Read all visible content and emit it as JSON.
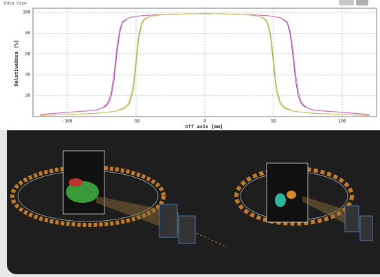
{
  "chart_data": {
    "type": "line",
    "title": "Data View",
    "xlabel": "Off axis [mm]",
    "ylabel": "RelativeDose [%]",
    "xlim": [
      -125,
      125
    ],
    "ylim": [
      0,
      104
    ],
    "xticks": [
      -100,
      -50,
      0,
      50,
      100
    ],
    "yticks": [
      20,
      40,
      60,
      80,
      100
    ],
    "grid": true,
    "series": [
      {
        "color": "#9b3fc4",
        "x": [
          -120,
          -100,
          -80,
          -75,
          -72,
          -70,
          -68,
          -66,
          -64,
          -62,
          -60,
          -55,
          -45,
          -30,
          0,
          30,
          45,
          55,
          60,
          62,
          64,
          66,
          68,
          70,
          72,
          75,
          80,
          100,
          120
        ],
        "values": [
          2,
          4,
          6,
          8,
          10,
          13,
          20,
          35,
          60,
          80,
          90,
          95,
          97,
          98,
          99,
          98,
          97,
          95,
          90,
          80,
          60,
          35,
          20,
          13,
          10,
          8,
          6,
          4,
          2
        ]
      },
      {
        "color": "#d46fb0",
        "x": [
          -120,
          -100,
          -80,
          -75,
          -72,
          -70,
          -68,
          -66,
          -64,
          -62,
          -60,
          -55,
          -45,
          -30,
          0,
          30,
          45,
          55,
          60,
          62,
          64,
          66,
          68,
          70,
          72,
          75,
          80,
          100,
          120
        ],
        "values": [
          2,
          4,
          6,
          8,
          11,
          15,
          24,
          42,
          66,
          83,
          91,
          95,
          97,
          98,
          99,
          98,
          97,
          95,
          91,
          83,
          66,
          42,
          24,
          15,
          11,
          8,
          6,
          4,
          2
        ]
      },
      {
        "color": "#a9a23c",
        "x": [
          -120,
          -100,
          -80,
          -65,
          -58,
          -55,
          -52,
          -50,
          -48,
          -46,
          -44,
          -40,
          -30,
          0,
          30,
          40,
          44,
          46,
          48,
          50,
          52,
          55,
          58,
          65,
          80,
          100,
          120
        ],
        "values": [
          1,
          2,
          3,
          5,
          8,
          12,
          25,
          50,
          75,
          88,
          93,
          96,
          98,
          99,
          98,
          96,
          93,
          88,
          75,
          50,
          25,
          12,
          8,
          5,
          3,
          2,
          1
        ]
      },
      {
        "color": "#c9c063",
        "x": [
          -120,
          -100,
          -80,
          -65,
          -58,
          -55,
          -52,
          -50,
          -48,
          -46,
          -44,
          -40,
          -30,
          0,
          30,
          40,
          44,
          46,
          48,
          50,
          52,
          55,
          58,
          65,
          80,
          100,
          120
        ],
        "values": [
          1,
          2,
          3,
          5,
          9,
          14,
          30,
          56,
          79,
          90,
          94,
          96,
          98,
          99,
          98,
          96,
          94,
          90,
          79,
          56,
          30,
          14,
          9,
          5,
          3,
          2,
          1
        ]
      }
    ]
  }
}
